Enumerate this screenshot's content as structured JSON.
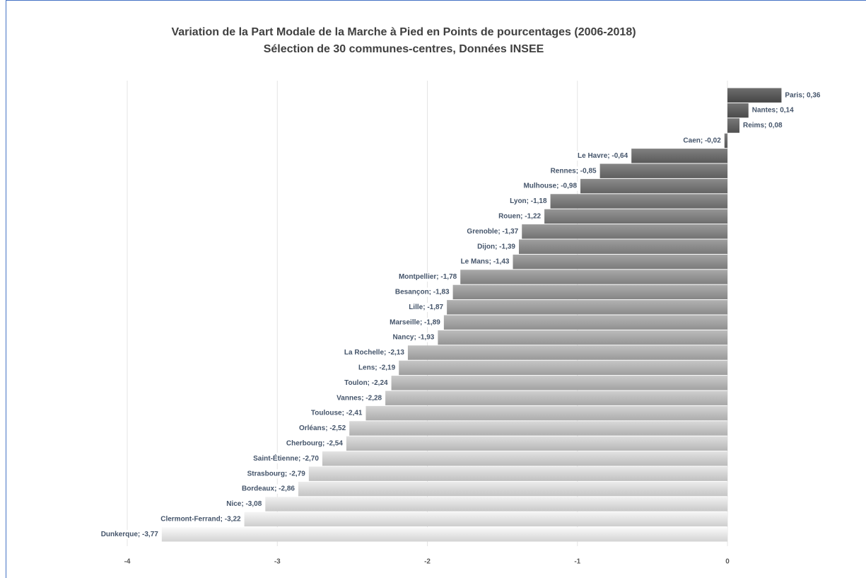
{
  "chart_data": {
    "type": "hbar",
    "title": "Variation de la Part Modale de la Marche à Pied en Points de pourcentages (2006-2018)",
    "subtitle": "Sélection de 30 communes-centres, Données INSEE",
    "values": [
      0.36,
      0.14,
      0.08,
      -0.02,
      -0.64,
      -0.85,
      -0.98,
      -1.18,
      -1.22,
      -1.37,
      -1.39,
      -1.43,
      -1.78,
      -1.83,
      -1.87,
      -1.89,
      -1.93,
      -2.13,
      -2.19,
      -2.24,
      -2.28,
      -2.41,
      -2.52,
      -2.54,
      -2.7,
      -2.79,
      -2.86,
      -3.08,
      -3.22,
      -3.77
    ],
    "value_labels": [
      "Paris; 0,36",
      "Nantes; 0,14",
      "Reims; 0,08",
      "Caen; -0,02",
      "Le Havre; -0,64",
      "Rennes; -0,85",
      "Mulhouse; -0,98",
      "Lyon; -1,18",
      "Rouen; -1,22",
      "Grenoble; -1,37",
      "Dijon; -1,39",
      "Le Mans; -1,43",
      "Montpellier; -1,78",
      "Besançon; -1,83",
      "Lille; -1,87",
      "Marseille; -1,89",
      "Nancy; -1,93",
      "La Rochelle; -2,13",
      "Lens; -2,19",
      "Toulon; -2,24",
      "Vannes; -2,28",
      "Toulouse; -2,41",
      "Orléans; -2,52",
      "Cherbourg; -2,54",
      "Saint-Étienne; -2,70",
      "Strasbourg; -2,79",
      "Bordeaux; -2,86",
      "Nice; -3,08",
      "Clermont-Ferrand; -3,22",
      "Dunkerque; -3,77"
    ],
    "colors": [
      "#555555",
      "#e2e2e2"
    ],
    "xlim": [
      -4.1,
      0.7
    ],
    "xticks": [
      -4,
      -3,
      -2,
      -1,
      0
    ],
    "grid": true
  }
}
